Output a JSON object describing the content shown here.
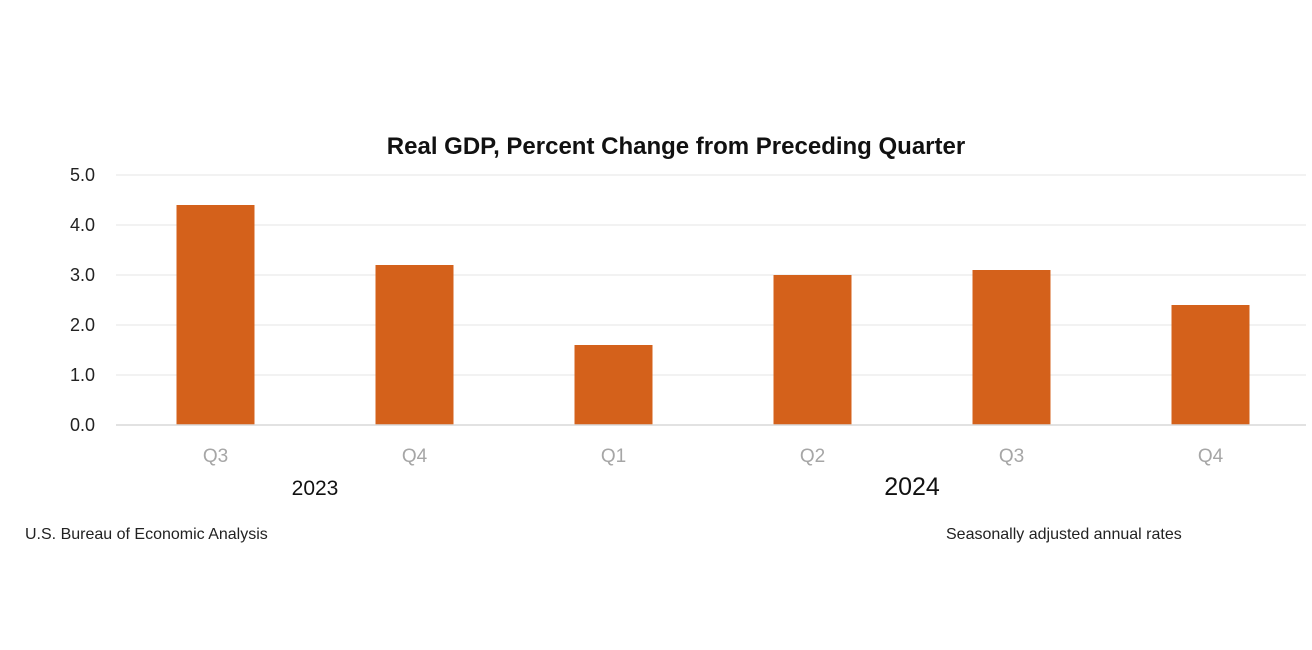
{
  "chart_data": {
    "type": "bar",
    "title": "Real GDP, Percent Change from Preceding Quarter",
    "categories": [
      "Q3",
      "Q4",
      "Q1",
      "Q2",
      "Q3",
      "Q4"
    ],
    "category_groups": [
      {
        "label": "2023",
        "categories": [
          "Q3",
          "Q4"
        ]
      },
      {
        "label": "2024",
        "categories": [
          "Q1",
          "Q2",
          "Q3",
          "Q4"
        ]
      }
    ],
    "values": [
      4.4,
      3.2,
      1.6,
      3.0,
      3.1,
      2.4
    ],
    "ylim": [
      0,
      5
    ],
    "yticks": [
      "0.0",
      "1.0",
      "2.0",
      "3.0",
      "4.0",
      "5.0"
    ],
    "grid": true,
    "legend": "none",
    "bar_color": "#d4611b"
  },
  "footer": {
    "source": "U.S. Bureau of Economic Analysis",
    "note": "Seasonally adjusted annual rates"
  }
}
